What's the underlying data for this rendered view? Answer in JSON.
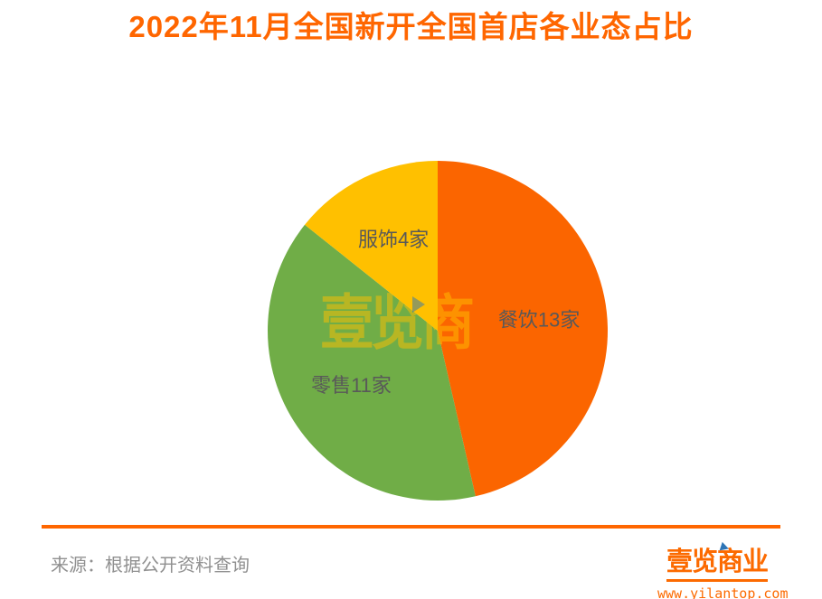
{
  "title": "2022年11月全国新开全国首店各业态占比",
  "chart_data": {
    "type": "pie",
    "title": "2022年11月全国新开全国首店各业态占比",
    "unit": "家",
    "total": 28,
    "direction": "clockwise",
    "start_angle_deg": 0,
    "label_color": "#595959",
    "slices": [
      {
        "id": "catering",
        "name": "餐饮",
        "value": 13,
        "label": "餐饮13家",
        "color": "#FB6500"
      },
      {
        "id": "retail",
        "name": "零售",
        "value": 11,
        "label": "零售11家",
        "color": "#70AD47"
      },
      {
        "id": "apparel",
        "name": "服饰",
        "value": 4,
        "label": "服饰4家",
        "color": "#FFC000"
      }
    ]
  },
  "watermark": {
    "text": "壹览商"
  },
  "footer": {
    "source": "来源：根据公开资料查询",
    "brand": "壹览商业",
    "website": "www.yilantop.com"
  },
  "colors": {
    "title": "#FF6600",
    "divider": "#FF6600",
    "brand": "#FC6A00",
    "source_text": "#909090",
    "slice_label": "#595959"
  }
}
